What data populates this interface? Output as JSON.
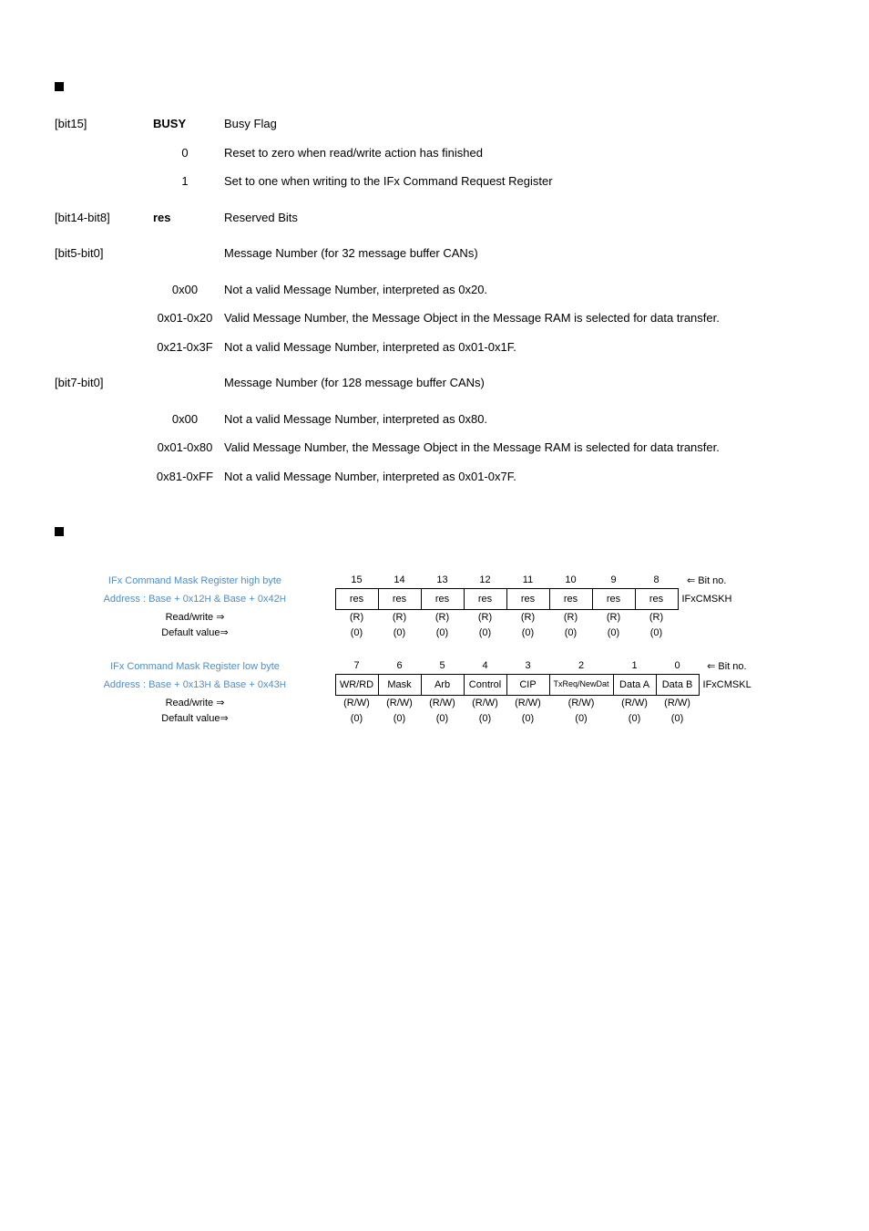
{
  "section1": {
    "rows": [
      {
        "bit": "[bit15]",
        "name": "BUSY",
        "desc": "Busy Flag"
      },
      {
        "bit": "",
        "name": "0",
        "desc": "Reset to zero when read/write action has finished",
        "sub": true
      },
      {
        "bit": "",
        "name": "1",
        "desc": "Set to one when writing to the IFx Command Request Register",
        "sub": true
      },
      {
        "spacer": true
      },
      {
        "bit": "[bit14-bit8]",
        "name": "res",
        "desc": "Reserved Bits"
      },
      {
        "spacer": true
      },
      {
        "bit": "[bit5-bit0]",
        "name": "",
        "desc": "Message Number (for 32 message buffer CANs)"
      },
      {
        "spacer": true
      },
      {
        "bit": "",
        "name": "0x00",
        "desc": "Not a valid Message Number, interpreted as 0x20.",
        "sub": true
      },
      {
        "bit": "",
        "name": "0x01-0x20",
        "desc": "Valid Message Number, the Message Object in the Message RAM is selected for data transfer.",
        "sub": true
      },
      {
        "bit": "",
        "name": "0x21-0x3F",
        "desc": "Not a valid Message Number, interpreted as 0x01-0x1F.",
        "sub": true
      },
      {
        "spacer": true
      },
      {
        "bit": "[bit7-bit0]",
        "name": "",
        "desc": "Message Number (for 128 message buffer CANs)"
      },
      {
        "spacer": true
      },
      {
        "bit": "",
        "name": "0x00",
        "desc": "Not a valid Message Number, interpreted as 0x80.",
        "sub": true
      },
      {
        "bit": "",
        "name": "0x01-0x80",
        "desc": "Valid Message Number, the Message Object in the Message RAM is selected for data transfer.",
        "sub": true
      },
      {
        "bit": "",
        "name": "0x81-0xFF",
        "desc": "Not a valid Message Number, interpreted as 0x01-0x7F.",
        "sub": true
      }
    ]
  },
  "regHigh": {
    "title": "IFx Command Mask Register high byte",
    "addr_prefix": "Address : Base + 0x12",
    "addr_mid": " & Base + 0x42",
    "addr_h": "H",
    "name": "IFxCMSKH",
    "bits": [
      "15",
      "14",
      "13",
      "12",
      "11",
      "10",
      "9",
      "8"
    ],
    "cells": [
      "res",
      "res",
      "res",
      "res",
      "res",
      "res",
      "res",
      "res"
    ],
    "rw_top": [
      "(R)",
      "(R)",
      "(R)",
      "(R)",
      "(R)",
      "(R)",
      "(R)",
      "(R)"
    ],
    "rw_bot": [
      "(0)",
      "(0)",
      "(0)",
      "(0)",
      "(0)",
      "(0)",
      "(0)",
      "(0)"
    ],
    "read_write": "Read/write ⇒",
    "default": "Default value⇒",
    "bitno": "⇐ Bit no."
  },
  "regLow": {
    "title": "IFx Command Mask  Register low byte",
    "addr_prefix": "Address : Base + 0x13",
    "addr_mid": " & Base + 0x43",
    "addr_h": "H",
    "name": "IFxCMSKL",
    "bits": [
      "7",
      "6",
      "5",
      "4",
      "3",
      "2",
      "1",
      "0"
    ],
    "cells": [
      "WR/RD",
      "Mask",
      "Arb",
      "Control",
      "CIP",
      "TxReq/NewDat",
      "Data A",
      "Data B"
    ],
    "rw_top": [
      "(R/W)",
      "(R/W)",
      "(R/W)",
      "(R/W)",
      "(R/W)",
      "(R/W)",
      "(R/W)",
      "(R/W)"
    ],
    "rw_bot": [
      "(0)",
      "(0)",
      "(0)",
      "(0)",
      "(0)",
      "(0)",
      "(0)",
      "(0)"
    ],
    "read_write": "Read/write ⇒",
    "default": "Default value⇒",
    "bitno": "⇐ Bit no."
  }
}
